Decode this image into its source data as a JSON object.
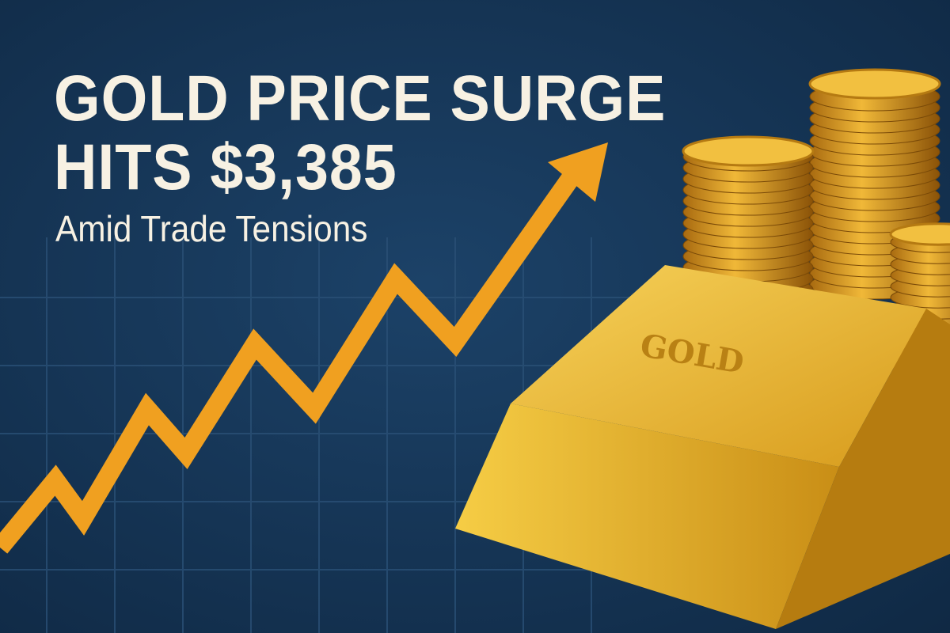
{
  "headline": {
    "line1": "GOLD PRICE SURGE",
    "line2": "HITS $3,385",
    "subtitle": "Amid Trade Tensions"
  },
  "bar_engraving": "GOLD",
  "colors": {
    "background": "#163557",
    "arrow": "#f0a020",
    "gold": "#e8b430",
    "text": "#f7f1e3"
  },
  "icons": [
    "up-trend-arrow",
    "gold-bar",
    "gold-coin-stack"
  ]
}
